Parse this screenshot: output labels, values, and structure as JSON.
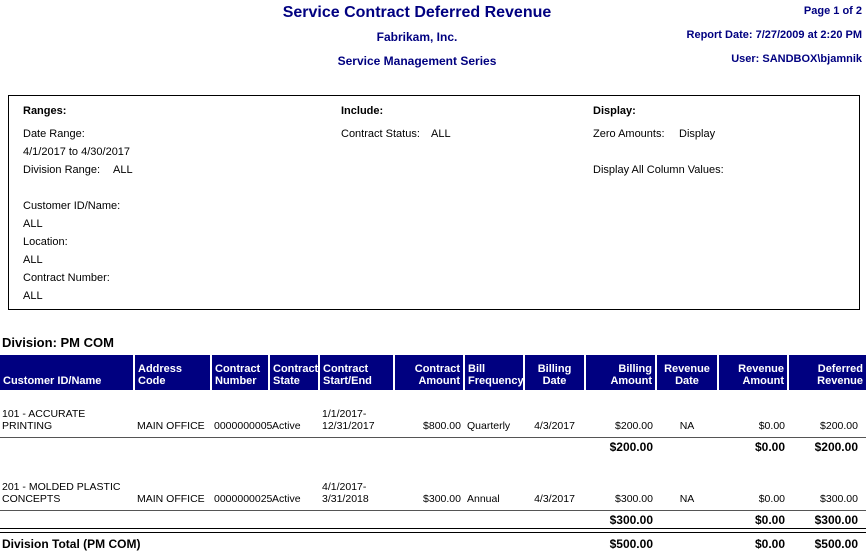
{
  "page_header": {
    "title": "Service Contract Deferred Revenue",
    "company": "Fabrikam, Inc.",
    "series": "Service Management Series",
    "page": "Page 1 of 2",
    "report_date": "Report Date: 7/27/2009 at 2:20 PM",
    "user": "User: SANDBOX\\bjamnik"
  },
  "options_box": {
    "ranges": {
      "heading": "Ranges:",
      "date_range_label": "Date Range:",
      "date_range_value": "4/1/2017 to 4/30/2017",
      "division_range_label": "Division Range:",
      "division_range_value": "ALL",
      "customer_label": "Customer ID/Name:",
      "customer_value": "ALL",
      "location_label": "Location:",
      "location_value": "ALL",
      "contract_number_label": "Contract Number:",
      "contract_number_value": "ALL"
    },
    "include": {
      "heading": "Include:",
      "contract_status_label": "Contract Status:",
      "contract_status_value": "ALL"
    },
    "display": {
      "heading": "Display:",
      "zero_amounts_label": "Zero Amounts:",
      "zero_amounts_value": "Display",
      "display_all_label": "Display All Column Values:"
    }
  },
  "division": {
    "label": "Division: PM COM"
  },
  "table": {
    "columns": [
      "Customer ID/Name",
      "Address Code",
      "Contract\nNumber",
      "Contract\nState",
      "Contract\nStart/End",
      "Contract\nAmount",
      "Bill\nFrequency",
      "Billing\nDate",
      "Billing\nAmount",
      "Revenue\nDate",
      "Revenue\nAmount",
      "Deferred\nRevenue"
    ],
    "rows": [
      {
        "customer": "101 - ACCURATE\nPRINTING",
        "address_code": "MAIN OFFICE",
        "contract_number": "0000000005",
        "contract_state": "Active",
        "contract_start_end": "1/1/2017-\n12/31/2017",
        "contract_amount": "$800.00",
        "bill_frequency": "Quarterly",
        "billing_date": "4/3/2017",
        "billing_amount": "$200.00",
        "revenue_date": "NA",
        "revenue_amount": "$0.00",
        "deferred_revenue": "$200.00"
      },
      {
        "customer": "201 - MOLDED PLASTIC\nCONCEPTS",
        "address_code": "MAIN OFFICE",
        "contract_number": "0000000025",
        "contract_state": "Active",
        "contract_start_end": "4/1/2017-\n3/31/2018",
        "contract_amount": "$300.00",
        "bill_frequency": "Annual",
        "billing_date": "4/3/2017",
        "billing_amount": "$300.00",
        "revenue_date": "NA",
        "revenue_amount": "$0.00",
        "deferred_revenue": "$300.00"
      }
    ],
    "subtotals": [
      {
        "billing_amount": "$200.00",
        "revenue_amount": "$0.00",
        "deferred_revenue": "$200.00"
      },
      {
        "billing_amount": "$300.00",
        "revenue_amount": "$0.00",
        "deferred_revenue": "$300.00"
      }
    ],
    "division_total": {
      "label": "Division Total (PM COM)",
      "billing_amount": "$500.00",
      "revenue_amount": "$0.00",
      "deferred_revenue": "$500.00"
    }
  },
  "colors": {
    "navy": "#000080",
    "header_text": "#ffffff",
    "row_line": "#555555",
    "total_line": "#000000"
  }
}
